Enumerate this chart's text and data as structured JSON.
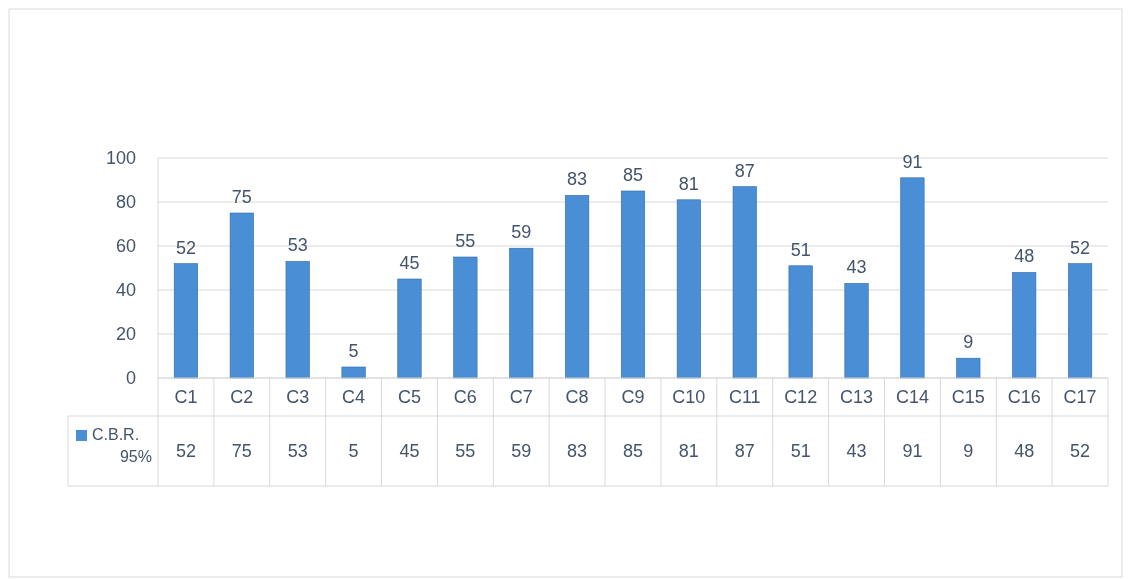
{
  "chart_data": {
    "type": "bar",
    "categories": [
      "C1",
      "C2",
      "C3",
      "C4",
      "C5",
      "C6",
      "C7",
      "C8",
      "C9",
      "C10",
      "C11",
      "C12",
      "C13",
      "C14",
      "C15",
      "C16",
      "C17"
    ],
    "series": [
      {
        "name": "C.B.R. 95%",
        "color": "#4a8fd6",
        "values": [
          52,
          75,
          53,
          5,
          45,
          55,
          59,
          83,
          85,
          81,
          87,
          51,
          43,
          91,
          9,
          48,
          52
        ]
      }
    ],
    "annotations": [
      {
        "text": "52",
        "x": "C1",
        "y": 52
      },
      {
        "text": "75",
        "x": "C2",
        "y": 75
      },
      {
        "text": "53",
        "x": "C3",
        "y": 53
      },
      {
        "text": "5",
        "x": "C4",
        "y": 5
      },
      {
        "text": "45",
        "x": "C5",
        "y": 45
      },
      {
        "text": "55",
        "x": "C6",
        "y": 55
      },
      {
        "text": "59",
        "x": "C7",
        "y": 59
      },
      {
        "text": "83",
        "x": "C8",
        "y": 83
      },
      {
        "text": "85",
        "x": "C9",
        "y": 85
      },
      {
        "text": "81",
        "x": "C10",
        "y": 81
      },
      {
        "text": "87",
        "x": "C11",
        "y": 87
      },
      {
        "text": "51",
        "x": "C12",
        "y": 51
      },
      {
        "text": "43",
        "x": "C13",
        "y": 43
      },
      {
        "text": "91",
        "x": "C14",
        "y": 91
      },
      {
        "text": "9",
        "x": "C15",
        "y": 9
      },
      {
        "text": "48",
        "x": "C16",
        "y": 48
      },
      {
        "text": "52",
        "x": "C17",
        "y": 52
      }
    ],
    "ylim": [
      0,
      100
    ],
    "yticks": [
      0,
      20,
      40,
      60,
      80,
      100
    ],
    "grid": "y",
    "data_labels": true,
    "legend": "bottom"
  }
}
